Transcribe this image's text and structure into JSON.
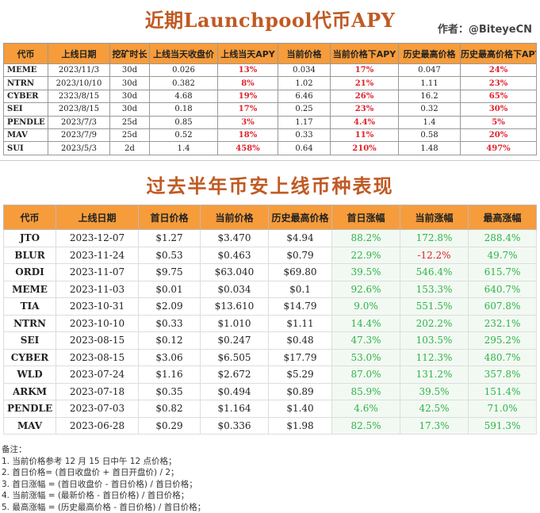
{
  "top": {
    "title": "近期Launchpool代币APY",
    "author": "作者：@BiteyeCN",
    "headers": [
      "代币",
      "上线日期",
      "挖矿时长",
      "上线当天收盘价",
      "上线当天APY",
      "当前价格",
      "当前价格下APY",
      "历史最高价格",
      "历史最高价格下APY"
    ],
    "rows": [
      [
        "MEME",
        "2023/11/3",
        "30d",
        "0.026",
        "13%",
        "0.034",
        "17%",
        "0.047",
        "24%"
      ],
      [
        "NTRN",
        "2023/10/10",
        "30d",
        "0.382",
        "8%",
        "1.02",
        "21%",
        "1.11",
        "23%"
      ],
      [
        "CYBER",
        "2323/8/15",
        "30d",
        "4.68",
        "19%",
        "6.46",
        "26%",
        "16.2",
        "65%"
      ],
      [
        "SEI",
        "2023/8/15",
        "30d",
        "0.18",
        "17%",
        "0.25",
        "23%",
        "0.32",
        "30%"
      ],
      [
        "PENDLE",
        "2023/7/3",
        "25d",
        "0.85",
        "3%",
        "1.17",
        "4.4%",
        "1.4",
        "5%"
      ],
      [
        "MAV",
        "2023/7/9",
        "25d",
        "0.52",
        "18%",
        "0.33",
        "11%",
        "0.58",
        "20%"
      ],
      [
        "SUI",
        "2023/5/3",
        "2d",
        "1.4",
        "458%",
        "0.64",
        "210%",
        "1.48",
        "497%"
      ]
    ]
  },
  "bottom": {
    "title": "过去半年币安上线币种表现",
    "headers": [
      "代币",
      "上线日期",
      "首日价格",
      "当前价格",
      "历史最高价格",
      "首日涨幅",
      "当前涨幅",
      "最高涨幅"
    ],
    "rows": [
      [
        "JTO",
        "2023-12-07",
        "$1.27",
        "$3.470",
        "$4.94",
        "88.2%",
        "172.8%",
        "288.4%"
      ],
      [
        "BLUR",
        "2023-11-24",
        "$0.53",
        "$0.463",
        "$0.79",
        "22.9%",
        "-12.2%",
        "49.7%"
      ],
      [
        "ORDI",
        "2023-11-07",
        "$9.75",
        "$63.040",
        "$69.80",
        "39.5%",
        "546.4%",
        "615.7%"
      ],
      [
        "MEME",
        "2023-11-03",
        "$0.01",
        "$0.034",
        "$0.1",
        "92.6%",
        "153.3%",
        "640.7%"
      ],
      [
        "TIA",
        "2023-10-31",
        "$2.09",
        "$13.610",
        "$14.79",
        "9.0%",
        "551.5%",
        "607.8%"
      ],
      [
        "NTRN",
        "2023-10-10",
        "$0.33",
        "$1.010",
        "$1.11",
        "14.4%",
        "202.2%",
        "232.1%"
      ],
      [
        "SEI",
        "2023-08-15",
        "$0.12",
        "$0.247",
        "$0.48",
        "47.3%",
        "103.5%",
        "295.2%"
      ],
      [
        "CYBER",
        "2023-08-15",
        "$3.06",
        "$6.505",
        "$17.79",
        "53.0%",
        "112.3%",
        "480.7%"
      ],
      [
        "WLD",
        "2023-07-24",
        "$1.16",
        "$2.672",
        "$5.29",
        "87.0%",
        "131.2%",
        "357.8%"
      ],
      [
        "ARKM",
        "2023-07-18",
        "$0.35",
        "$0.494",
        "$0.89",
        "85.9%",
        "39.5%",
        "151.4%"
      ],
      [
        "PENDLE",
        "2023-07-03",
        "$0.82",
        "$1.164",
        "$1.40",
        "4.6%",
        "42.5%",
        "71.0%"
      ],
      [
        "MAV",
        "2023-06-28",
        "$0.29",
        "$0.336",
        "$1.98",
        "82.5%",
        "17.3%",
        "591.3%"
      ]
    ]
  },
  "notes": [
    "备注：",
    "1. 当前价格参考 12 月 15 日中午 12 点价格；",
    "2. 首日价格= (首日收盘价 + 首日开盘价) / 2；",
    "3. 首日涨幅 = (首日收盘价 - 首日价格) / 首日价格；",
    "4. 当前涨幅 = (最新价格 - 首日价格) / 首日价格；",
    "5. 最高涨幅 = (历史最高价格 - 首日价格) / 首日价格；"
  ],
  "colors": {
    "header_bg": "#f79c3b",
    "title": "#c05a23",
    "positive": "#2fb34a",
    "negative": "#e0202a"
  }
}
